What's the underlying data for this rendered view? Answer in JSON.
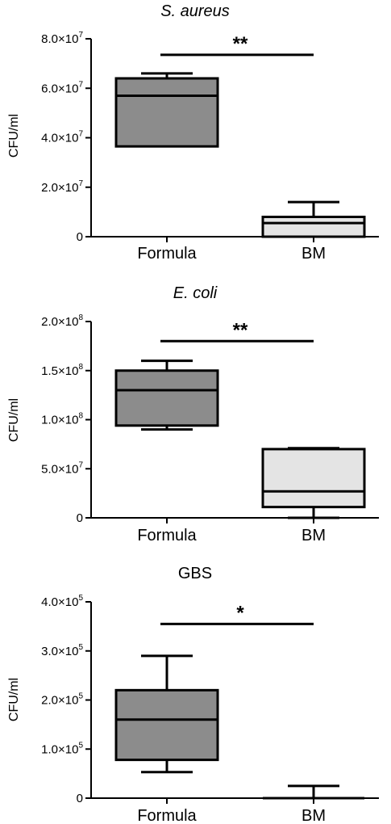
{
  "chart_data": [
    {
      "type": "box",
      "title": "S. aureus",
      "title_italic": true,
      "ylabel": "CFU/ml",
      "ylim": [
        0,
        80000000
      ],
      "yticks": [
        {
          "value": 0,
          "label": "0"
        },
        {
          "value": 20000000,
          "label": "2.0×10",
          "exp": "7"
        },
        {
          "value": 40000000,
          "label": "4.0×10",
          "exp": "7"
        },
        {
          "value": 60000000,
          "label": "6.0×10",
          "exp": "7"
        },
        {
          "value": 80000000,
          "label": "8.0×10",
          "exp": "7"
        }
      ],
      "categories": [
        "Formula",
        "BM"
      ],
      "boxes": [
        {
          "category": "Formula",
          "min": 36500000,
          "q1": 36500000,
          "median": 57000000,
          "q3": 64000000,
          "max": 66000000,
          "fill": "#8c8c8c"
        },
        {
          "category": "BM",
          "min": 0,
          "q1": 0,
          "median": 5500000,
          "q3": 8000000,
          "max": 14000000,
          "fill": "#e4e4e4"
        }
      ],
      "significance": {
        "label": "**",
        "y": 73500000
      }
    },
    {
      "type": "box",
      "title": "E. coli",
      "title_italic": true,
      "ylabel": "CFU/ml",
      "ylim": [
        0,
        200000000
      ],
      "yticks": [
        {
          "value": 0,
          "label": "0"
        },
        {
          "value": 50000000,
          "label": "5.0×10",
          "exp": "7"
        },
        {
          "value": 100000000,
          "label": "1.0×10",
          "exp": "8"
        },
        {
          "value": 150000000,
          "label": "1.5×10",
          "exp": "8"
        },
        {
          "value": 200000000,
          "label": "2.0×10",
          "exp": "8"
        }
      ],
      "categories": [
        "Formula",
        "BM"
      ],
      "boxes": [
        {
          "category": "Formula",
          "min": 90000000,
          "q1": 94000000,
          "median": 130000000,
          "q3": 150000000,
          "max": 160000000,
          "fill": "#8c8c8c"
        },
        {
          "category": "BM",
          "min": 0,
          "q1": 11000000,
          "median": 27000000,
          "q3": 70000000,
          "max": 71000000,
          "fill": "#e4e4e4"
        }
      ],
      "significance": {
        "label": "**",
        "y": 180000000
      }
    },
    {
      "type": "box",
      "title": "GBS",
      "title_italic": false,
      "ylabel": "CFU/ml",
      "ylim": [
        0,
        400000
      ],
      "yticks": [
        {
          "value": 0,
          "label": "0"
        },
        {
          "value": 100000,
          "label": "1.0×10",
          "exp": "5"
        },
        {
          "value": 200000,
          "label": "2.0×10",
          "exp": "5"
        },
        {
          "value": 300000,
          "label": "3.0×10",
          "exp": "5"
        },
        {
          "value": 400000,
          "label": "4.0×10",
          "exp": "5"
        }
      ],
      "categories": [
        "Formula",
        "BM"
      ],
      "boxes": [
        {
          "category": "Formula",
          "min": 53000,
          "q1": 78000,
          "median": 160000,
          "q3": 220000,
          "max": 290000,
          "fill": "#8c8c8c"
        },
        {
          "category": "BM",
          "min": 0,
          "q1": 0,
          "median": 0,
          "q3": 0,
          "max": 25000,
          "fill": "#e4e4e4"
        }
      ],
      "significance": {
        "label": "*",
        "y": 355000
      }
    }
  ]
}
